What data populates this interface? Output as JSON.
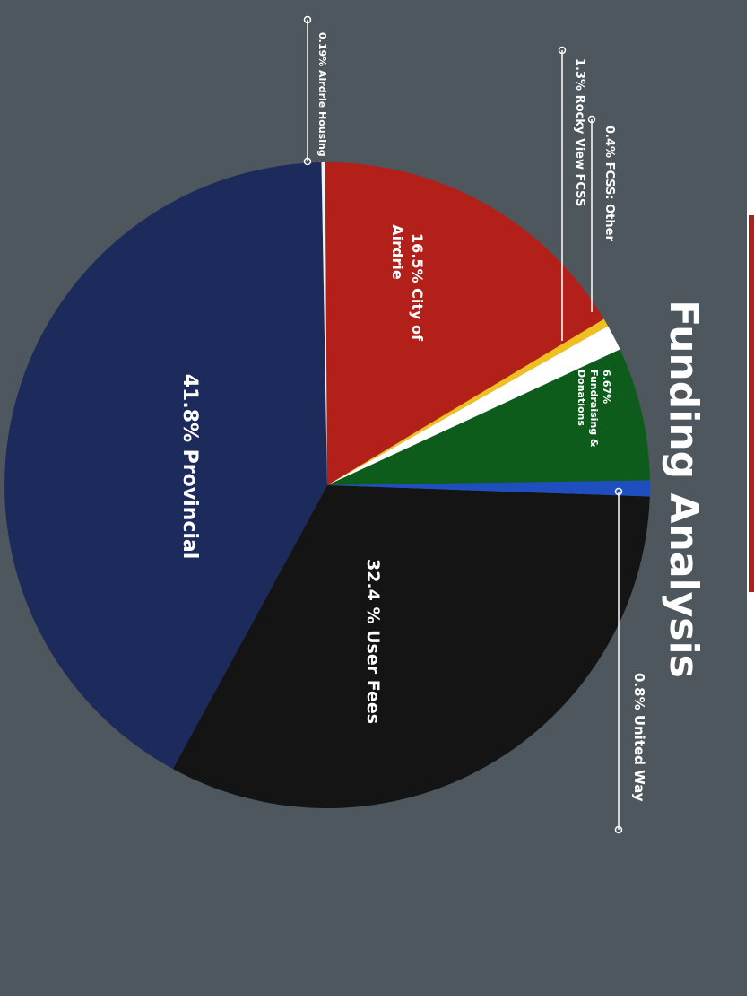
{
  "chart_data": {
    "type": "pie",
    "title": "Funding Analysis",
    "slices": [
      {
        "label": "User Fees",
        "display": "32.4 %  User Fees",
        "value": 32.4,
        "color": "#141414"
      },
      {
        "label": "Provincial",
        "display": "41.8% Provincial",
        "value": 41.8,
        "color": "#1c2a5c"
      },
      {
        "label": "Airdrie Housing",
        "display": "0.19% Airdrie Housing",
        "value": 0.19,
        "color": "#f2f2f2"
      },
      {
        "label": "City of Airdrie",
        "display_lines": [
          "16.5%  City of",
          "Airdrie"
        ],
        "value": 16.5,
        "color": "#b3201a"
      },
      {
        "label": "FCSS: Other",
        "display": "0.4% FCSS: Other",
        "value": 0.4,
        "color": "#f0c020"
      },
      {
        "label": "Rocky View FCSS",
        "display": "1.3% Rocky View FCSS",
        "value": 1.3,
        "color": "#ffffff"
      },
      {
        "label": "Fundraising & Donations",
        "display_lines": [
          "6.67%",
          "Fundraising &",
          "Donations"
        ],
        "value": 6.67,
        "color": "#0d5c1c"
      },
      {
        "label": "United Way",
        "display": "0.8%  United Way",
        "value": 0.8,
        "color": "#1f4fbf"
      }
    ]
  },
  "colors": {
    "background": "#4e575d",
    "text": "#ffffff",
    "accent": "#a3251c"
  }
}
